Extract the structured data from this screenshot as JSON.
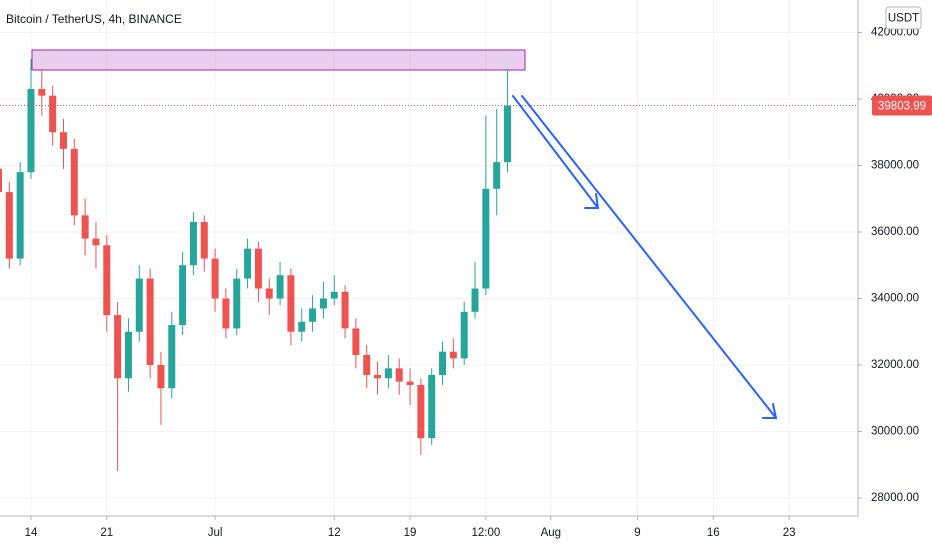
{
  "chart_data": {
    "type": "candlestick",
    "title": "Bitcoin / TetherUS, 4h, BINANCE",
    "currency": "USDT",
    "x": [
      11,
      12,
      13,
      14,
      15,
      16,
      17,
      18,
      19,
      20,
      21,
      22,
      23,
      24,
      25,
      26,
      27,
      28,
      29,
      30,
      31,
      32,
      33,
      34,
      35,
      36,
      37,
      38,
      39,
      40,
      41,
      42,
      43,
      44,
      45,
      46,
      47,
      48,
      49,
      50,
      51,
      52,
      53,
      54,
      55,
      56,
      57,
      58
    ],
    "open": [
      37900,
      37200,
      35200,
      37800,
      40300,
      40100,
      39000,
      38500,
      36500,
      35800,
      35600,
      33500,
      31600,
      33000,
      34600,
      32000,
      31300,
      33200,
      35000,
      36300,
      35200,
      34000,
      33100,
      34600,
      35500,
      34300,
      34000,
      34700,
      33000,
      33300,
      33700,
      34000,
      34200,
      33100,
      32300,
      31700,
      31600,
      31900,
      31500,
      31400,
      29800,
      31700,
      32400,
      32200,
      33600,
      34300,
      37300,
      38100
    ],
    "high": [
      38300,
      37500,
      38100,
      41200,
      40900,
      40400,
      39400,
      38800,
      37000,
      36300,
      35900,
      33900,
      33400,
      35000,
      34900,
      32400,
      33600,
      35400,
      36600,
      36500,
      35500,
      34300,
      34900,
      35800,
      35700,
      34600,
      35100,
      34900,
      33700,
      34100,
      34500,
      34700,
      34400,
      33400,
      32600,
      32100,
      32300,
      32200,
      31900,
      31600,
      31900,
      32700,
      32800,
      33900,
      35100,
      39500,
      39700,
      40900
    ],
    "low": [
      36800,
      34900,
      35000,
      37600,
      39500,
      38600,
      37900,
      36200,
      35300,
      34900,
      33000,
      28800,
      31200,
      32700,
      31600,
      30200,
      31000,
      32900,
      34700,
      34800,
      33600,
      32800,
      32900,
      34300,
      33900,
      33500,
      33800,
      32600,
      32700,
      33000,
      33400,
      33800,
      32800,
      31900,
      31300,
      31100,
      31300,
      31100,
      30800,
      29300,
      29600,
      31400,
      31900,
      32000,
      33400,
      34100,
      36500,
      37800
    ],
    "close": [
      37200,
      35200,
      37800,
      40300,
      40100,
      39000,
      38500,
      36500,
      35800,
      35600,
      33500,
      31600,
      33000,
      34600,
      32000,
      31300,
      33200,
      35000,
      36300,
      35200,
      34000,
      33100,
      34600,
      35500,
      34300,
      34000,
      34700,
      33000,
      33300,
      33700,
      34000,
      34200,
      33100,
      32300,
      31700,
      31600,
      31900,
      31500,
      31400,
      29800,
      31700,
      32400,
      32200,
      33600,
      34300,
      37300,
      38100,
      39803.99
    ],
    "up_color": "#26a69a",
    "down_color": "#ef5350",
    "last_price": 39803.99,
    "last_price_color": "#ef5350",
    "xlim": [
      11.14,
      90.36
    ],
    "ylim": [
      27459,
      42977
    ],
    "xticks": [
      14,
      21,
      {
        "value": 31,
        "label": "Jul"
      },
      {
        "value": 42,
        "label": "12"
      },
      {
        "value": 49,
        "label": "19"
      },
      {
        "value": 56,
        "label": "12:00"
      },
      {
        "value": 62,
        "label": "Aug"
      },
      {
        "value": 70,
        "label": "9"
      },
      {
        "value": 77,
        "label": "16"
      },
      {
        "value": 84,
        "label": "23"
      }
    ],
    "yticks": [
      {
        "value": 28000,
        "label": "28000.00"
      },
      {
        "value": 30000,
        "label": "30000.00"
      },
      {
        "value": 32000,
        "label": "32000.00"
      },
      {
        "value": 34000,
        "label": "34000.00"
      },
      {
        "value": 36000,
        "label": "36000.00"
      },
      {
        "value": 38000,
        "label": "38000.00"
      },
      {
        "value": 40000,
        "label": "40000.00"
      },
      {
        "value": 42000,
        "label": "42000.00"
      }
    ],
    "grid": true
  }
}
